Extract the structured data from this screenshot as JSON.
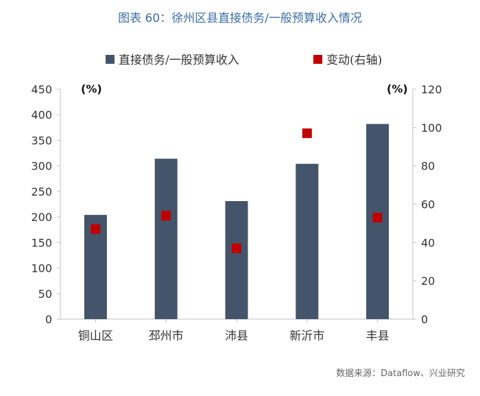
{
  "figure_title": "图表 60：徐州区县直接债务/一般预算收入情况",
  "source_note": "数据来源：Dataflow、兴业研究",
  "colors": {
    "bar": "#44546a",
    "marker": "#c00000",
    "axis": "#bfbfbf",
    "text": "#333333"
  },
  "chart_data": {
    "type": "bar",
    "categories": [
      "铜山区",
      "邳州市",
      "沛县",
      "新沂市",
      "丰县"
    ],
    "series": [
      {
        "name": "直接债务/一般预算收入",
        "type": "bar",
        "axis": "left",
        "values": [
          204,
          314,
          231,
          304,
          382
        ]
      },
      {
        "name": "变动(右轴)",
        "type": "scatter",
        "axis": "right",
        "values": [
          47,
          54,
          37,
          97,
          53
        ]
      }
    ],
    "y_left": {
      "label": "(%)",
      "min": 0,
      "max": 450,
      "step": 50,
      "ticks": [
        "0",
        "50",
        "100",
        "150",
        "200",
        "250",
        "300",
        "350",
        "400",
        "450"
      ]
    },
    "y_right": {
      "label": "(%)",
      "min": 0,
      "max": 120,
      "step": 20,
      "ticks": [
        "0",
        "20",
        "40",
        "60",
        "80",
        "100",
        "120"
      ]
    },
    "grid": false,
    "legend_position": "top"
  }
}
